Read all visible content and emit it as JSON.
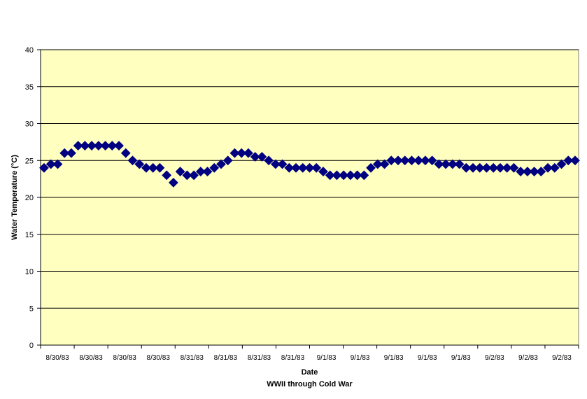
{
  "chart_data": {
    "type": "scatter",
    "title": "",
    "xlabel": "Date",
    "xlabel_sub": "WWII through Cold War",
    "ylabel": "Water Temperature (°C)",
    "ylim": [
      0,
      40
    ],
    "yticks": [
      0,
      5,
      10,
      15,
      20,
      25,
      30,
      35,
      40
    ],
    "grid": "horizontal",
    "legend": "none",
    "colors": {
      "plot_background": "#FFFFC0",
      "marker": "#000080",
      "gridline": "#000000"
    },
    "xtick_labels": [
      "8/30/83",
      "8/30/83",
      "8/30/83",
      "8/30/83",
      "8/31/83",
      "8/31/83",
      "8/31/83",
      "8/31/83",
      "9/1/83",
      "9/1/83",
      "9/1/83",
      "9/1/83",
      "9/1/83",
      "9/2/83",
      "9/2/83",
      "9/2/83"
    ],
    "series": [
      {
        "marker": "diamond",
        "values": [
          24,
          24.5,
          24.5,
          26,
          26,
          27,
          27,
          27,
          27,
          27,
          27,
          27,
          26,
          25,
          24.5,
          24,
          24,
          24,
          23,
          22,
          23.5,
          23,
          23,
          23.5,
          23.5,
          24,
          24.5,
          25,
          26,
          26,
          26,
          25.5,
          25.5,
          25,
          24.5,
          24.5,
          24,
          24,
          24,
          24,
          24,
          23.5,
          23,
          23,
          23,
          23,
          23,
          23,
          24,
          24.5,
          24.5,
          25,
          25,
          25,
          25,
          25,
          25,
          25,
          24.5,
          24.5,
          24.5,
          24.5,
          24,
          24,
          24,
          24,
          24,
          24,
          24,
          24,
          23.5,
          23.5,
          23.5,
          23.5,
          24,
          24,
          24.5,
          25,
          25
        ]
      }
    ]
  }
}
